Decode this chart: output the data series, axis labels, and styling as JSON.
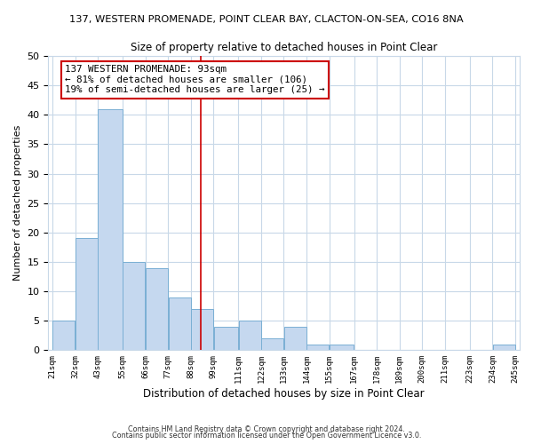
{
  "title_line1": "137, WESTERN PROMENADE, POINT CLEAR BAY, CLACTON-ON-SEA, CO16 8NA",
  "title_line2": "Size of property relative to detached houses in Point Clear",
  "xlabel": "Distribution of detached houses by size in Point Clear",
  "ylabel": "Number of detached properties",
  "bar_counts": [
    5,
    19,
    41,
    15,
    14,
    9,
    7,
    4,
    5,
    2,
    4,
    1,
    1,
    0,
    0,
    0,
    0,
    0,
    0,
    1
  ],
  "bin_edges": [
    21,
    32,
    43,
    55,
    66,
    77,
    88,
    99,
    111,
    122,
    133,
    144,
    155,
    167,
    178,
    189,
    200,
    211,
    223,
    234,
    245
  ],
  "tick_labels": [
    "21sqm",
    "32sqm",
    "43sqm",
    "55sqm",
    "66sqm",
    "77sqm",
    "88sqm",
    "99sqm",
    "111sqm",
    "122sqm",
    "133sqm",
    "144sqm",
    "155sqm",
    "167sqm",
    "178sqm",
    "189sqm",
    "200sqm",
    "211sqm",
    "223sqm",
    "234sqm",
    "245sqm"
  ],
  "bar_color": "#c5d8ef",
  "bar_edge_color": "#7aafd4",
  "reference_line_x": 93,
  "reference_line_color": "#cc0000",
  "ylim": [
    0,
    50
  ],
  "yticks": [
    0,
    5,
    10,
    15,
    20,
    25,
    30,
    35,
    40,
    45,
    50
  ],
  "annotation_title": "137 WESTERN PROMENADE: 93sqm",
  "annotation_line1": "← 81% of detached houses are smaller (106)",
  "annotation_line2": "19% of semi-detached houses are larger (25) →",
  "annotation_box_color": "#ffffff",
  "annotation_border_color": "#cc0000",
  "footer_line1": "Contains HM Land Registry data © Crown copyright and database right 2024.",
  "footer_line2": "Contains public sector information licensed under the Open Government Licence v3.0.",
  "background_color": "#ffffff",
  "grid_color": "#c8d8e8"
}
